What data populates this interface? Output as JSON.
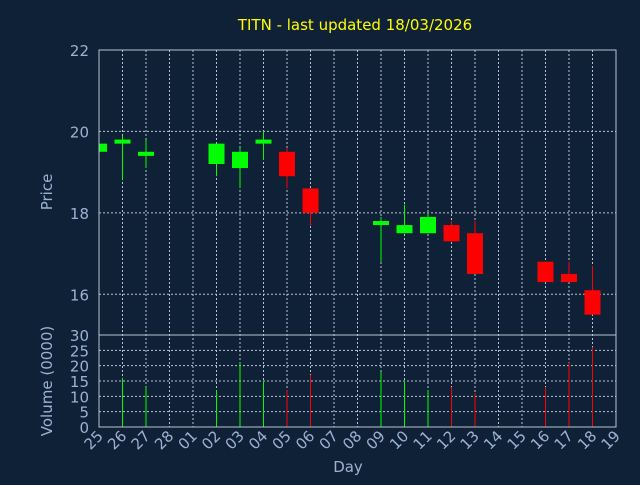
{
  "chart_data": {
    "type": "candlestick",
    "title": "TITN - last updated 18/03/2026",
    "xlabel": "Day",
    "ylabel_price": "Price",
    "ylabel_volume": "Volume (0000)",
    "price_ylim": [
      15,
      22
    ],
    "price_yticks": [
      16,
      18,
      20,
      22
    ],
    "volume_ylim": [
      0,
      30
    ],
    "volume_yticks": [
      0,
      5,
      10,
      15,
      20,
      25,
      30
    ],
    "grid": true,
    "colors": {
      "background": "#0f2136",
      "grid": "#b8c4d4",
      "up": "#00ff00",
      "down": "#ff0000",
      "title": "#ffff00",
      "text": "#9bb3d3"
    },
    "x_labels": [
      "25",
      "26",
      "27",
      "28",
      "01",
      "02",
      "03",
      "04",
      "05",
      "06",
      "07",
      "08",
      "09",
      "10",
      "11",
      "12",
      "13",
      "14",
      "15",
      "16",
      "17",
      "18",
      "19"
    ],
    "candles": [
      {
        "x": "25",
        "open": 19.5,
        "high": 19.7,
        "low": 19.5,
        "close": 19.7,
        "volume": 0
      },
      {
        "x": "26",
        "open": 19.7,
        "high": 19.9,
        "low": 18.8,
        "close": 19.8,
        "volume": 16
      },
      {
        "x": "27",
        "open": 19.4,
        "high": 19.8,
        "low": 19.1,
        "close": 19.5,
        "volume": 13
      },
      {
        "x": "02",
        "open": 19.2,
        "high": 19.7,
        "low": 18.9,
        "close": 19.7,
        "volume": 12
      },
      {
        "x": "03",
        "open": 19.1,
        "high": 19.6,
        "low": 18.6,
        "close": 19.5,
        "volume": 21
      },
      {
        "x": "04",
        "open": 19.7,
        "high": 20.0,
        "low": 19.3,
        "close": 19.8,
        "volume": 15
      },
      {
        "x": "05",
        "open": 19.5,
        "high": 19.6,
        "low": 18.6,
        "close": 18.9,
        "volume": 12
      },
      {
        "x": "06",
        "open": 18.6,
        "high": 18.6,
        "low": 17.7,
        "close": 18.0,
        "volume": 17
      },
      {
        "x": "09",
        "open": 17.7,
        "high": 17.9,
        "low": 16.8,
        "close": 17.8,
        "volume": 18
      },
      {
        "x": "10",
        "open": 17.5,
        "high": 18.2,
        "low": 17.5,
        "close": 17.7,
        "volume": 15
      },
      {
        "x": "11",
        "open": 17.5,
        "high": 18.0,
        "low": 17.5,
        "close": 17.9,
        "volume": 12
      },
      {
        "x": "12",
        "open": 17.7,
        "high": 17.8,
        "low": 17.3,
        "close": 17.3,
        "volume": 13
      },
      {
        "x": "13",
        "open": 17.5,
        "high": 17.8,
        "low": 16.5,
        "close": 16.5,
        "volume": 11
      },
      {
        "x": "16",
        "open": 16.8,
        "high": 16.8,
        "low": 16.3,
        "close": 16.3,
        "volume": 13
      },
      {
        "x": "17",
        "open": 16.5,
        "high": 16.8,
        "low": 16.3,
        "close": 16.3,
        "volume": 21
      },
      {
        "x": "18",
        "open": 16.1,
        "high": 16.7,
        "low": 15.5,
        "close": 15.5,
        "volume": 26
      }
    ]
  }
}
